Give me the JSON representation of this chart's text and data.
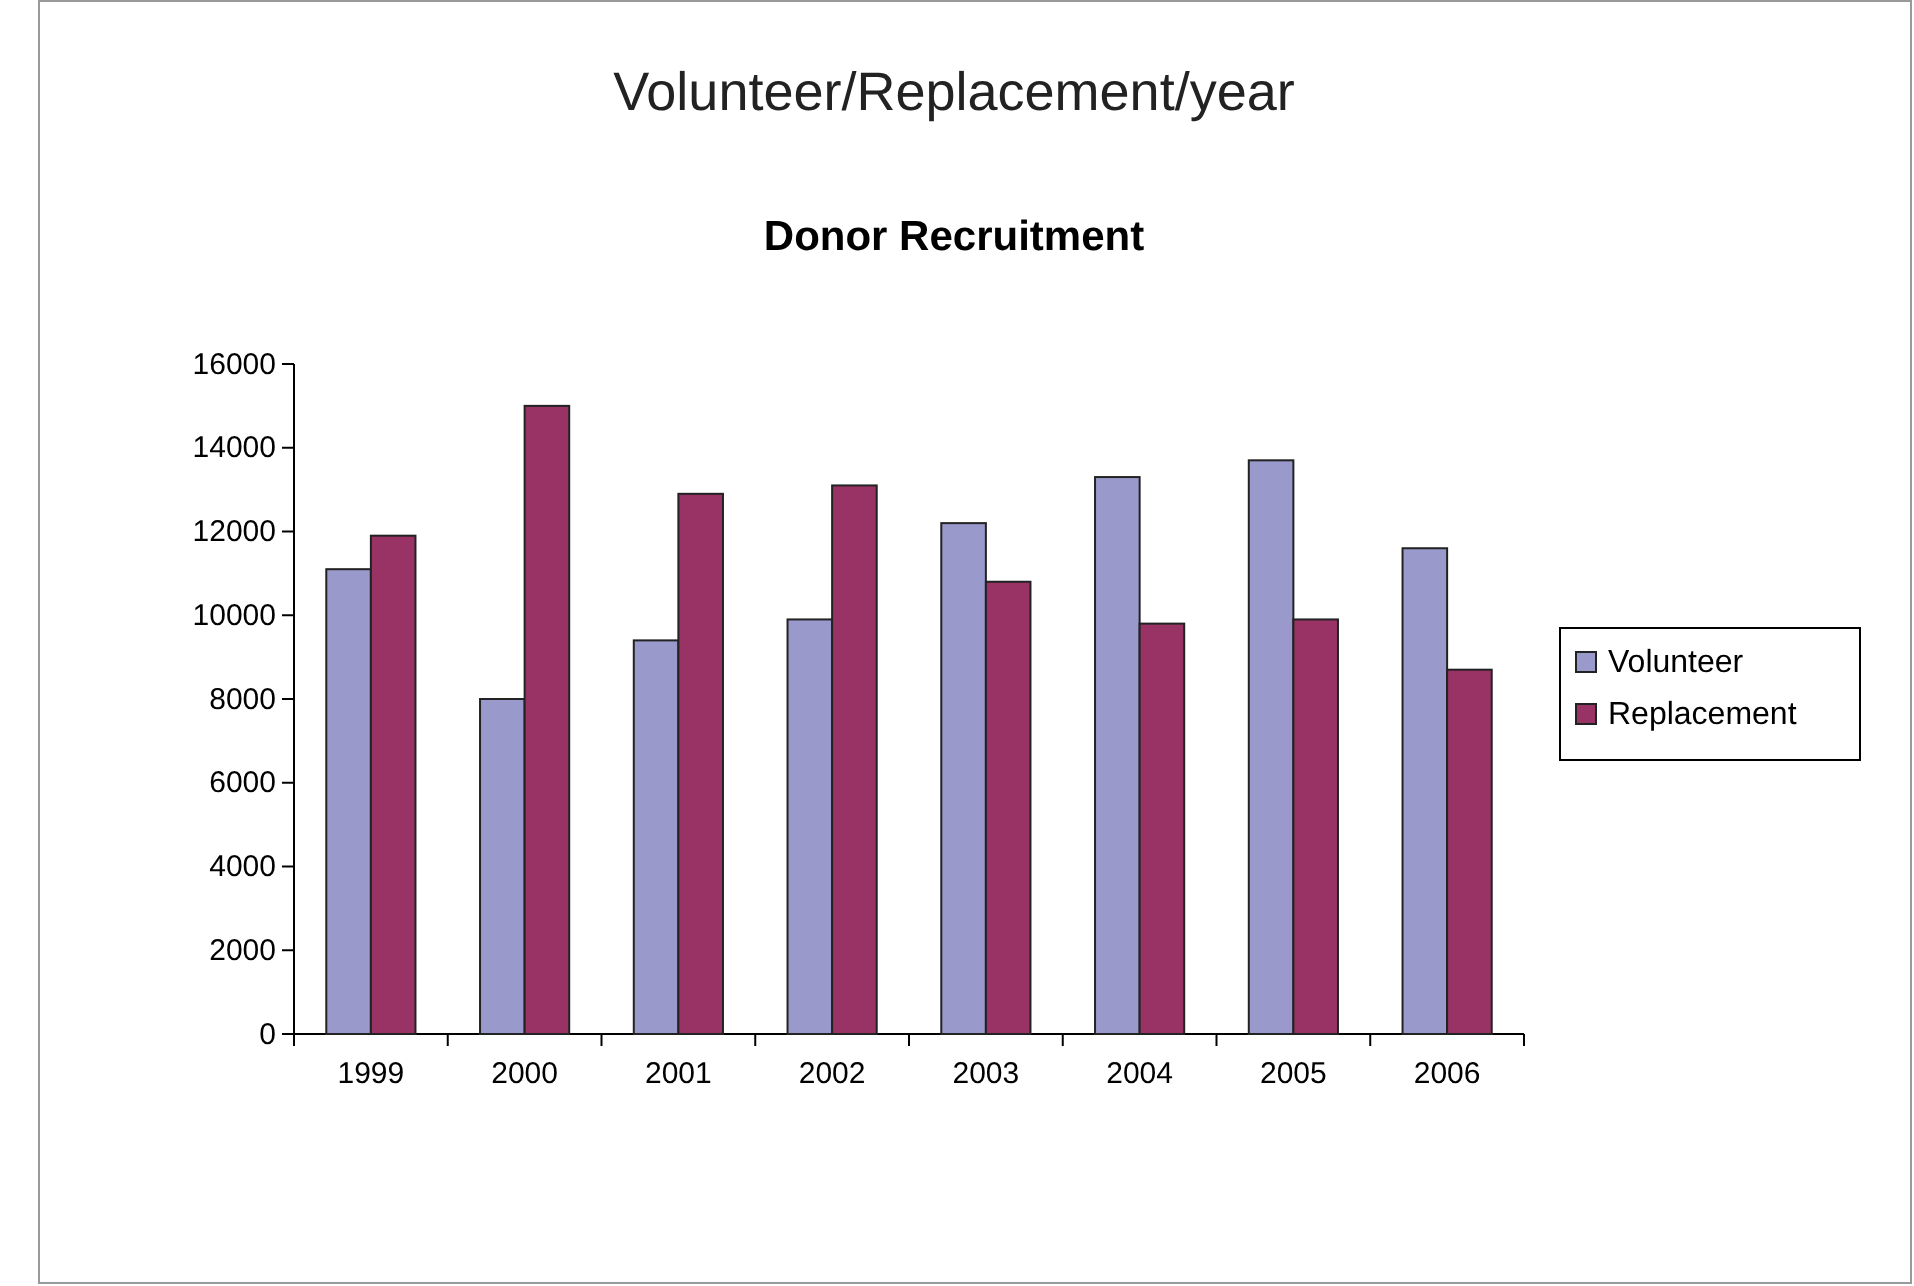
{
  "chart_data": {
    "type": "bar",
    "title": "Volunteer/Replacement/year",
    "subtitle": "Donor Recruitment",
    "categories": [
      "1999",
      "2000",
      "2001",
      "2002",
      "2003",
      "2004",
      "2005",
      "2006"
    ],
    "series": [
      {
        "name": "Volunteer",
        "color": "#9999cc",
        "values": [
          11100,
          8000,
          9400,
          9900,
          12200,
          13300,
          13700,
          11600
        ]
      },
      {
        "name": "Replacement",
        "color": "#993366",
        "values": [
          11900,
          15000,
          12900,
          13100,
          10800,
          9800,
          9900,
          8700
        ]
      }
    ],
    "ylim": [
      0,
      16000
    ],
    "yticks": [
      0,
      2000,
      4000,
      6000,
      8000,
      10000,
      12000,
      14000,
      16000
    ],
    "grid": false,
    "legend": "right"
  }
}
